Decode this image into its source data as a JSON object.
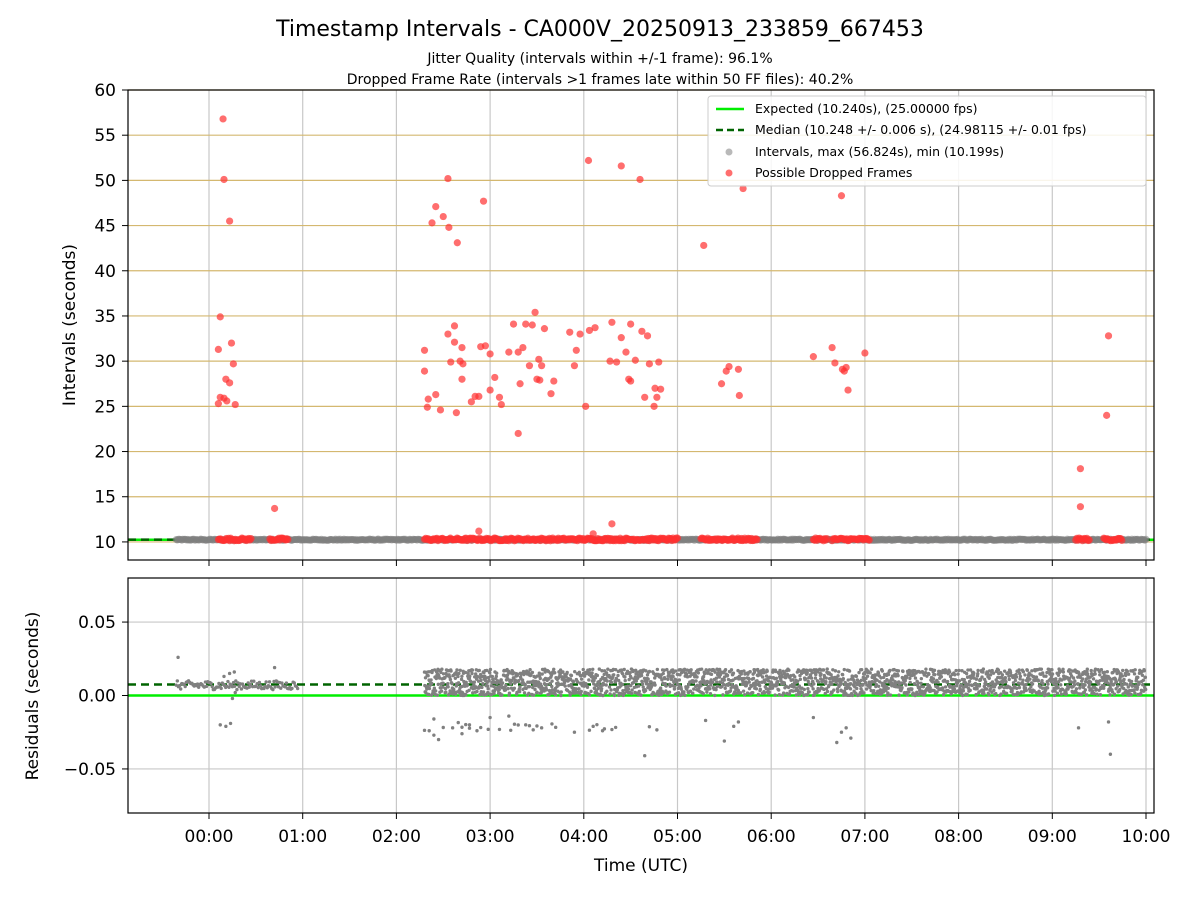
{
  "title": "Timestamp Intervals - CA000V_20250913_233859_667453",
  "subtitles": [
    "Jitter Quality (intervals within +/-1 frame): 96.1%",
    "Dropped Frame Rate (intervals >1 frames late within 50 FF files): 40.2%"
  ],
  "colors": {
    "expected": "#00ee00",
    "median": "#006400",
    "intervals": "#808080",
    "dropped": "#ff3030",
    "hline_grid": "#d4b870",
    "vgrid": "#c8c8c8"
  },
  "chart_data": [
    {
      "type": "scatter",
      "panel": "intervals",
      "ylabel": "Intervals (seconds)",
      "xlim": [
        -1.3,
        10.0
      ],
      "ylim": [
        8,
        60
      ],
      "y_ticks": [
        10,
        15,
        20,
        25,
        30,
        35,
        40,
        45,
        50,
        55,
        60
      ],
      "x_ticks": [
        0,
        1,
        2,
        3,
        4,
        5,
        6,
        7,
        8,
        9,
        10
      ],
      "x_tick_labels": [
        "00:00",
        "01:00",
        "02:00",
        "03:00",
        "04:00",
        "05:00",
        "06:00",
        "07:00",
        "08:00",
        "09:00",
        "10:00"
      ],
      "horizontal_grid": true,
      "legend_position": "top-right",
      "legend": [
        "Expected (10.240s), (25.00000 fps)",
        "Median (10.248 +/- 0.006 s), (24.98115 +/- 0.01 fps)",
        "Intervals, max (56.824s), min (10.199s)",
        "Possible Dropped Frames"
      ],
      "expected": 10.24,
      "median": 10.248,
      "baseline_intervals": {
        "x_range": [
          -0.35,
          10.0
        ],
        "y": 10.24
      },
      "dropped_baseline_ranges": [
        [
          0.1,
          0.45
        ],
        [
          0.65,
          0.85
        ],
        [
          2.3,
          5.0
        ],
        [
          5.25,
          5.85
        ],
        [
          6.45,
          6.6
        ],
        [
          6.65,
          7.05
        ],
        [
          9.25,
          9.4
        ],
        [
          9.55,
          9.75
        ]
      ],
      "dropped": [
        [
          0.15,
          56.8
        ],
        [
          0.16,
          50.1
        ],
        [
          0.22,
          45.5
        ],
        [
          0.12,
          34.9
        ],
        [
          0.24,
          32.0
        ],
        [
          0.1,
          31.3
        ],
        [
          0.26,
          29.7
        ],
        [
          0.18,
          28.0
        ],
        [
          0.22,
          27.6
        ],
        [
          0.12,
          26.0
        ],
        [
          0.16,
          25.9
        ],
        [
          0.19,
          25.6
        ],
        [
          0.1,
          25.3
        ],
        [
          0.28,
          25.2
        ],
        [
          0.7,
          13.7
        ],
        [
          2.55,
          50.2
        ],
        [
          2.42,
          47.1
        ],
        [
          2.93,
          47.7
        ],
        [
          2.5,
          46.0
        ],
        [
          2.38,
          45.3
        ],
        [
          2.56,
          44.8
        ],
        [
          2.65,
          43.1
        ],
        [
          2.3,
          31.2
        ],
        [
          2.62,
          33.9
        ],
        [
          2.55,
          33.0
        ],
        [
          2.62,
          32.1
        ],
        [
          2.7,
          31.5
        ],
        [
          2.9,
          31.6
        ],
        [
          2.95,
          31.7
        ],
        [
          3.0,
          30.8
        ],
        [
          2.68,
          30.0
        ],
        [
          2.58,
          29.9
        ],
        [
          2.71,
          29.7
        ],
        [
          2.3,
          28.9
        ],
        [
          2.7,
          28.0
        ],
        [
          2.84,
          26.1
        ],
        [
          2.88,
          26.1
        ],
        [
          2.34,
          25.8
        ],
        [
          2.42,
          26.3
        ],
        [
          2.33,
          24.9
        ],
        [
          2.47,
          24.6
        ],
        [
          2.64,
          24.3
        ],
        [
          2.8,
          25.5
        ],
        [
          3.0,
          26.8
        ],
        [
          3.05,
          28.2
        ],
        [
          3.1,
          26.0
        ],
        [
          3.12,
          25.2
        ],
        [
          3.2,
          31.0
        ],
        [
          3.25,
          34.1
        ],
        [
          3.3,
          31.0
        ],
        [
          3.35,
          31.5
        ],
        [
          3.38,
          34.1
        ],
        [
          3.42,
          29.5
        ],
        [
          3.45,
          34.0
        ],
        [
          3.48,
          35.4
        ],
        [
          3.52,
          30.2
        ],
        [
          3.55,
          29.5
        ],
        [
          3.58,
          33.6
        ],
        [
          3.5,
          28.0
        ],
        [
          3.53,
          27.9
        ],
        [
          3.32,
          27.5
        ],
        [
          3.3,
          22.0
        ],
        [
          3.65,
          26.4
        ],
        [
          3.68,
          27.8
        ],
        [
          3.85,
          33.2
        ],
        [
          3.9,
          29.5
        ],
        [
          3.92,
          31.2
        ],
        [
          3.96,
          33.0
        ],
        [
          4.02,
          25.0
        ],
        [
          4.06,
          33.4
        ],
        [
          4.12,
          33.7
        ],
        [
          4.05,
          52.2
        ],
        [
          4.4,
          51.6
        ],
        [
          4.6,
          50.1
        ],
        [
          4.3,
          34.3
        ],
        [
          4.28,
          30.0
        ],
        [
          4.35,
          29.9
        ],
        [
          4.4,
          32.6
        ],
        [
          4.45,
          31.0
        ],
        [
          4.48,
          28.0
        ],
        [
          4.5,
          27.8
        ],
        [
          4.5,
          34.1
        ],
        [
          4.55,
          30.1
        ],
        [
          4.62,
          33.3
        ],
        [
          4.68,
          32.8
        ],
        [
          4.7,
          29.7
        ],
        [
          4.8,
          29.9
        ],
        [
          4.76,
          27.0
        ],
        [
          4.82,
          26.9
        ],
        [
          4.65,
          26.0
        ],
        [
          4.78,
          26.0
        ],
        [
          4.75,
          25.0
        ],
        [
          5.28,
          42.8
        ],
        [
          5.7,
          49.1
        ],
        [
          5.47,
          27.5
        ],
        [
          5.52,
          28.9
        ],
        [
          5.55,
          29.4
        ],
        [
          5.65,
          29.1
        ],
        [
          5.66,
          26.2
        ],
        [
          6.45,
          30.5
        ],
        [
          6.65,
          31.5
        ],
        [
          6.68,
          29.8
        ],
        [
          6.75,
          48.3
        ],
        [
          6.76,
          29.1
        ],
        [
          6.78,
          28.9
        ],
        [
          6.8,
          29.3
        ],
        [
          6.82,
          26.8
        ],
        [
          7.0,
          30.9
        ],
        [
          9.3,
          18.1
        ],
        [
          9.3,
          13.9
        ],
        [
          9.6,
          32.8
        ],
        [
          9.58,
          24.0
        ],
        [
          2.88,
          11.2
        ],
        [
          4.3,
          12.0
        ],
        [
          4.1,
          10.9
        ]
      ]
    },
    {
      "type": "scatter",
      "panel": "residuals",
      "ylabel": "Residuals (seconds)",
      "xlabel": "Time (UTC)",
      "xlim": [
        -1.3,
        10.0
      ],
      "ylim": [
        -0.08,
        0.08
      ],
      "y_ticks": [
        -0.05,
        0.0,
        0.05
      ],
      "y_tick_labels": [
        "−0.05",
        "0.00",
        "0.05"
      ],
      "x_ticks": [
        0,
        1,
        2,
        3,
        4,
        5,
        6,
        7,
        8,
        9,
        10
      ],
      "x_tick_labels": [
        "00:00",
        "01:00",
        "02:00",
        "03:00",
        "04:00",
        "05:00",
        "06:00",
        "07:00",
        "08:00",
        "09:00",
        "10:00"
      ],
      "horizontal_grid": true,
      "expected": 0.0,
      "median": 0.0075,
      "point_clusters": [
        {
          "x_range": [
            -0.35,
            0.95
          ],
          "y_range": [
            0.004,
            0.01
          ]
        },
        {
          "x_range": [
            2.3,
            10.0
          ],
          "y_range": [
            0.0,
            0.018
          ]
        },
        {
          "x_range": [
            2.3,
            4.8
          ],
          "y_range": [
            -0.024,
            -0.018
          ]
        }
      ],
      "residual_points": [
        [
          -0.33,
          0.026
        ],
        [
          0.16,
          0.013
        ],
        [
          0.22,
          0.015
        ],
        [
          0.27,
          0.016
        ],
        [
          0.28,
          0.002
        ],
        [
          0.25,
          -0.002
        ],
        [
          0.7,
          0.019
        ],
        [
          0.12,
          -0.02
        ],
        [
          0.18,
          -0.021
        ],
        [
          0.23,
          -0.019
        ],
        [
          2.35,
          -0.024
        ],
        [
          2.4,
          -0.027
        ],
        [
          2.45,
          -0.03
        ],
        [
          2.4,
          -0.016
        ],
        [
          2.6,
          -0.022
        ],
        [
          2.7,
          -0.026
        ],
        [
          2.78,
          -0.02
        ],
        [
          3.0,
          -0.015
        ],
        [
          3.2,
          -0.014
        ],
        [
          3.55,
          -0.022
        ],
        [
          3.9,
          -0.025
        ],
        [
          4.2,
          -0.024
        ],
        [
          4.65,
          -0.041
        ],
        [
          5.3,
          -0.017
        ],
        [
          5.5,
          -0.031
        ],
        [
          5.6,
          -0.021
        ],
        [
          5.65,
          -0.018
        ],
        [
          6.45,
          -0.015
        ],
        [
          6.7,
          -0.032
        ],
        [
          6.75,
          -0.025
        ],
        [
          6.8,
          -0.022
        ],
        [
          6.85,
          -0.029
        ],
        [
          9.28,
          -0.022
        ],
        [
          9.6,
          -0.018
        ],
        [
          9.62,
          -0.04
        ]
      ]
    }
  ]
}
